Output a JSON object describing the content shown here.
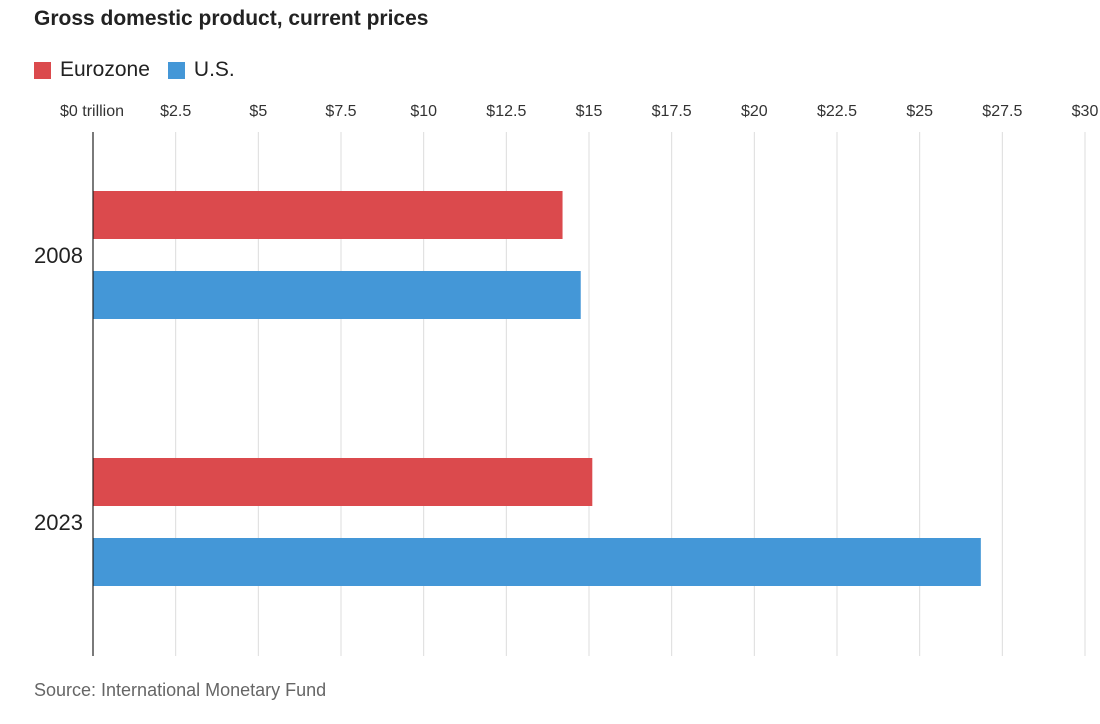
{
  "chart_data": {
    "type": "bar",
    "orientation": "horizontal",
    "title": "Gross domestic product, current prices",
    "categories": [
      "2008",
      "2023"
    ],
    "series": [
      {
        "name": "Eurozone",
        "color": "#db4a4d",
        "values": [
          14.2,
          15.1
        ]
      },
      {
        "name": "U.S.",
        "color": "#4497d7",
        "values": [
          14.75,
          26.85
        ]
      }
    ],
    "x_ticks": [
      {
        "value": 0,
        "label": "$0 trillion"
      },
      {
        "value": 2.5,
        "label": "$2.5"
      },
      {
        "value": 5,
        "label": "$5"
      },
      {
        "value": 7.5,
        "label": "$7.5"
      },
      {
        "value": 10,
        "label": "$10"
      },
      {
        "value": 12.5,
        "label": "$12.5"
      },
      {
        "value": 15,
        "label": "$15"
      },
      {
        "value": 17.5,
        "label": "$17.5"
      },
      {
        "value": 20,
        "label": "$20"
      },
      {
        "value": 22.5,
        "label": "$22.5"
      },
      {
        "value": 25,
        "label": "$25"
      },
      {
        "value": 27.5,
        "label": "$27.5"
      },
      {
        "value": 30,
        "label": "$30"
      }
    ],
    "xlim": [
      0,
      30
    ],
    "xlabel": "",
    "ylabel": "",
    "grid": true,
    "legend_position": "top-left",
    "source": "Source: International Monetary Fund"
  }
}
